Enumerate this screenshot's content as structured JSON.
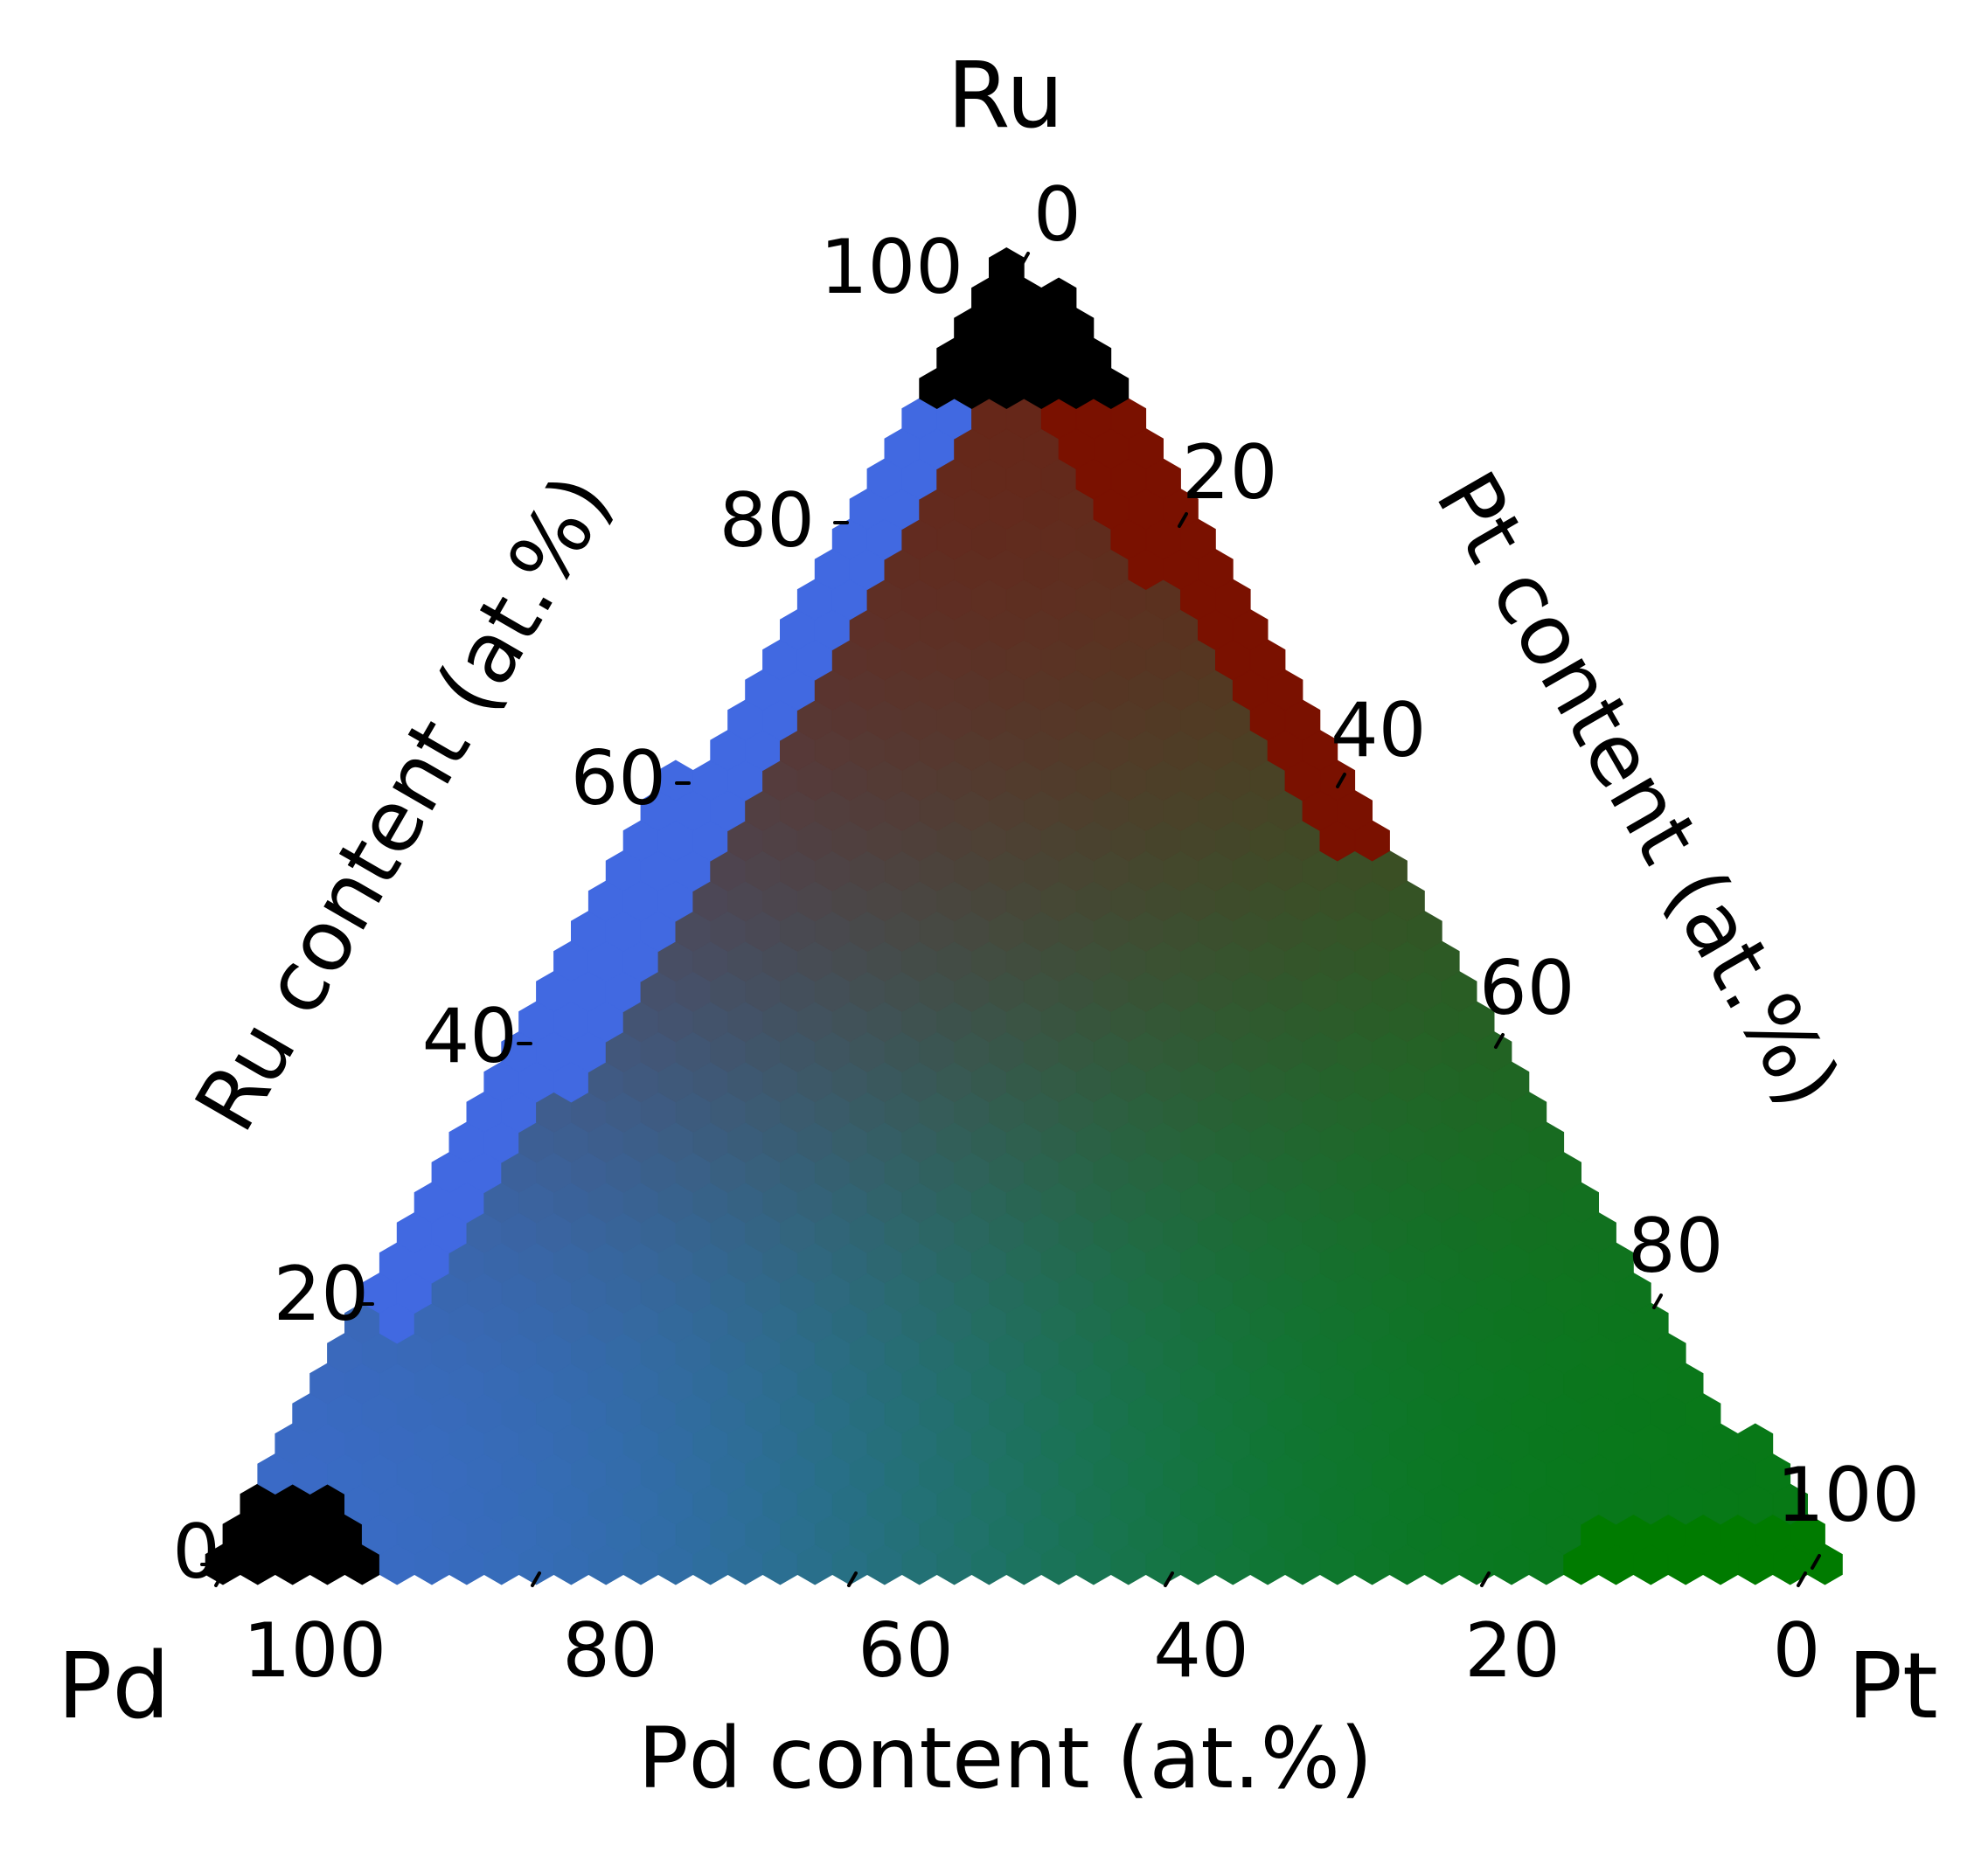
{
  "chart_data": {
    "type": "heatmap",
    "subtype": "ternary-hexbin",
    "vertices": {
      "top": "Ru",
      "left": "Pd",
      "right": "Pt"
    },
    "axes": {
      "bottom": {
        "label": "Pd content (at.%)",
        "ticks": [
          "100",
          "80",
          "60",
          "40",
          "20",
          "0"
        ]
      },
      "left": {
        "label": "Ru content (at.%)",
        "ticks": [
          "0",
          "20",
          "40",
          "60",
          "80",
          "100"
        ]
      },
      "right": {
        "label": "Pt content (at.%)",
        "ticks": [
          "0",
          "20",
          "40",
          "60",
          "80",
          "100"
        ]
      }
    },
    "range": [
      0,
      100
    ],
    "grid": false,
    "legend": "none",
    "colors": {
      "ru_rich": "#7a1100",
      "pt_rich": "#007b00",
      "pd_rich": "#4169e1",
      "mixed": "#22706e",
      "missing": "#000000"
    },
    "missing_regions": [
      "Ru corner: Ru 100–88 at.% with Pd 0–12 at.%",
      "Pd corner: Pd 100–90 at.% with Ru 0–6 at.%"
    ]
  }
}
